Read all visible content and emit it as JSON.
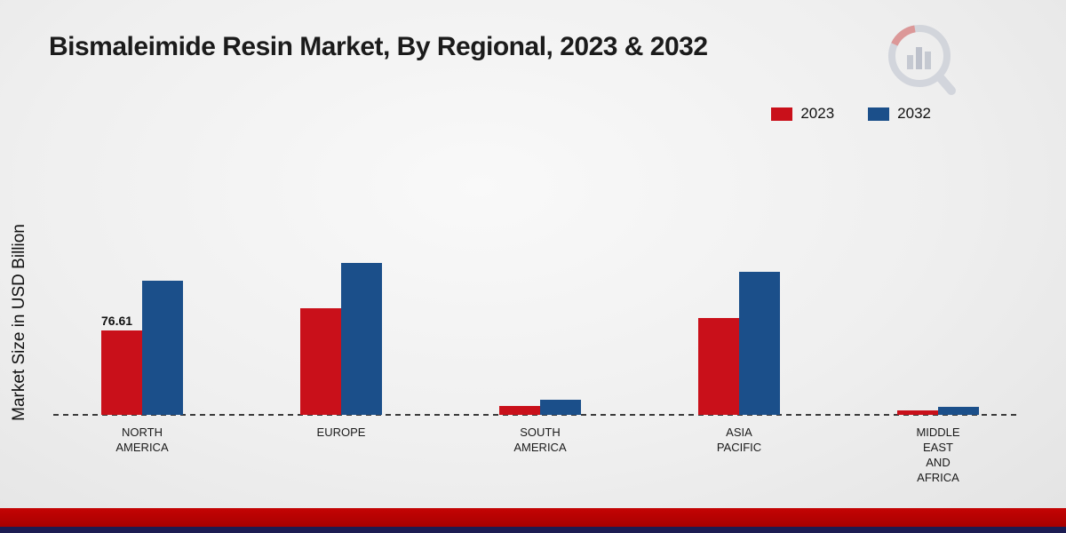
{
  "title": "Bismaleimide Resin Market, By Regional, 2023 & 2032",
  "y_axis_label": "Market Size in USD Billion",
  "legend": [
    {
      "label": "2023",
      "color": "#c9101a"
    },
    {
      "label": "2032",
      "color": "#1b4f8a"
    }
  ],
  "footer": {
    "red_stripe_color": "#c40404",
    "navy_stripe_color": "#1c1c52"
  },
  "chart_data": {
    "type": "bar",
    "title": "Bismaleimide Resin Market, By Regional, 2023 & 2032",
    "xlabel": "",
    "ylabel": "Market Size in USD Billion",
    "categories": [
      "NORTH AMERICA",
      "EUROPE",
      "SOUTH AMERICA",
      "ASIA PACIFIC",
      "MIDDLE EAST AND AFRICA"
    ],
    "category_lines": [
      [
        "NORTH",
        "AMERICA"
      ],
      [
        "EUROPE"
      ],
      [
        "SOUTH",
        "AMERICA"
      ],
      [
        "ASIA",
        "PACIFIC"
      ],
      [
        "MIDDLE",
        "EAST",
        "AND",
        "AFRICA"
      ]
    ],
    "series": [
      {
        "name": "2023",
        "color": "#c9101a",
        "values": [
          76.61,
          97,
          8,
          88,
          4
        ]
      },
      {
        "name": "2032",
        "color": "#1b4f8a",
        "values": [
          122,
          138,
          14,
          130,
          7
        ]
      }
    ],
    "annotations": [
      {
        "category_index": 0,
        "series_index": 0,
        "text": "76.61"
      }
    ],
    "ylim": [
      0,
      160
    ],
    "grid": false,
    "legend_position": "top-right",
    "baseline_style": "dashed"
  }
}
